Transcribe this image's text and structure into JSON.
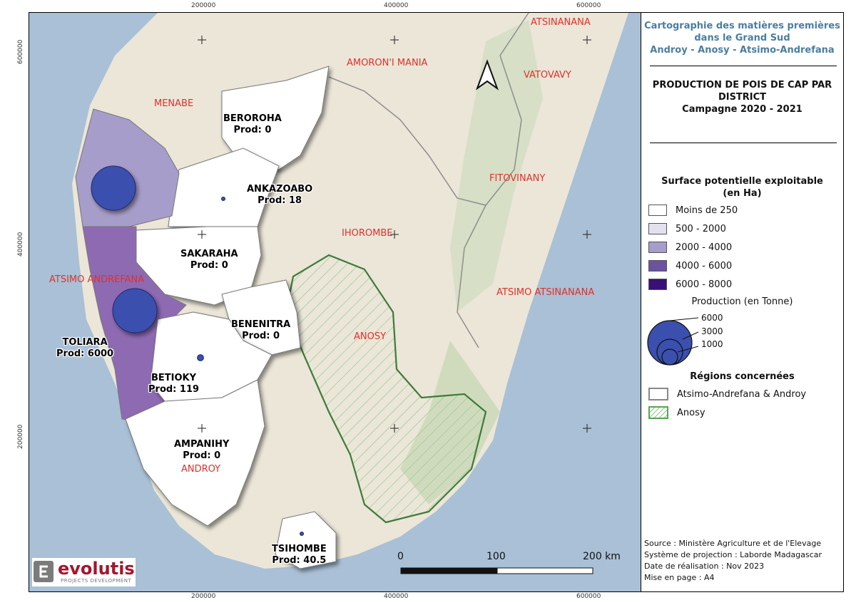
{
  "coords": {
    "top": [
      "200000",
      "400000",
      "600000"
    ],
    "bottom": [
      "200000",
      "400000",
      "600000"
    ],
    "left": [
      "600000",
      "400000",
      "200000"
    ]
  },
  "regions": {
    "menabe": "MENABE",
    "amoron": "AMORON'I MANIA",
    "atsinanana": "ATSINANANA",
    "vatovavy": "VATOVAVY",
    "fitovinany": "FITOVINANY",
    "ihorombe": "IHOROMBE",
    "atsimo_andrefana": "ATSIMO ANDREFANA",
    "atsimo_atsinanana": "ATSIMO ATSINANANA",
    "anosy": "ANOSY",
    "androy": "ANDROY"
  },
  "districts": [
    {
      "name": "BEROROHA",
      "prod": "Prod: 0",
      "surface_class": "Moins de 250",
      "production_t": 0
    },
    {
      "name": "ANKAZOABO",
      "prod": "Prod: 18",
      "surface_class": "Moins de 250",
      "production_t": 18
    },
    {
      "name": "SAKARAHA",
      "prod": "Prod: 0",
      "surface_class": "Moins de 250",
      "production_t": 0
    },
    {
      "name": "BENENITRA",
      "prod": "Prod: 0",
      "surface_class": "Moins de 250",
      "production_t": 0
    },
    {
      "name": "TOLIARA",
      "prod": "Prod: 6000",
      "surface_class": "4000 - 6000",
      "production_t": 6000
    },
    {
      "name": "BETIOKY",
      "prod": "Prod: 119",
      "surface_class": "Moins de 250",
      "production_t": 119
    },
    {
      "name": "AMPANIHY",
      "prod": "Prod: 0",
      "surface_class": "Moins de 250",
      "production_t": 0
    },
    {
      "name": "TSIHOMBE",
      "prod": "Prod: 40.5",
      "surface_class": "Moins de 250",
      "production_t": 40.5
    }
  ],
  "panel": {
    "title_line1": "Cartographie des matières premières",
    "title_line2": "dans le Grand Sud",
    "title_line3": "Androy - Anosy - Atsimo-Andrefana",
    "map_title_line1": "PRODUCTION DE POIS DE CAP PAR",
    "map_title_line2": "DISTRICT",
    "map_title_line3": "Campagne 2020 - 2021",
    "surface_title_line1": "Surface potentielle exploitable",
    "surface_title_line2": "(en Ha)",
    "surface_classes": [
      {
        "label": "Moins de 250",
        "color": "#ffffff"
      },
      {
        "label": "500 - 2000",
        "color": "#e4e1ef"
      },
      {
        "label": "2000 - 4000",
        "color": "#a79dca"
      },
      {
        "label": "4000 - 6000",
        "color": "#6b53a1"
      },
      {
        "label": "6000 - 8000",
        "color": "#3b0f78"
      }
    ],
    "production_title": "Production (en Tonne)",
    "production_labels": [
      "6000",
      "3000",
      "1000"
    ],
    "regions_title": "Régions concernées",
    "regions_items": [
      "Atsimo-Andrefana & Androy",
      "Anosy"
    ],
    "source": "Source : Ministère Agriculture et de l'Elevage",
    "projection": "Système de projection : Laborde Madagascar",
    "date": "Date de réalisation : Nov 2023",
    "layout": "Mise en page : A4"
  },
  "scale": {
    "labels": [
      "0",
      "100",
      "200 km"
    ]
  },
  "logo": {
    "brand": "evolutis",
    "sub": "PROJECTS DEVELOPMENT"
  },
  "colors": {
    "circle": "#3a4fae",
    "region_label": "#e0312b",
    "anosy_border": "#3f7a3a",
    "title_blue": "#4a7ea2"
  }
}
